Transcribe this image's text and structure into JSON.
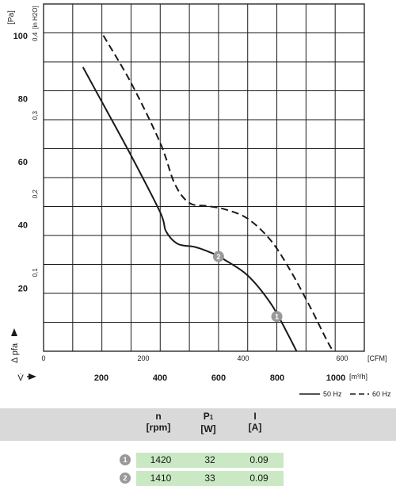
{
  "chart_data": {
    "type": "line",
    "ylabel": "Δ pfa",
    "xlabel": "V̇",
    "y_unit_pa": "[Pa]",
    "y_unit_inh2o": "[in H2O]",
    "x_unit_cfm": "[CFM]",
    "x_unit_m3h": "[m³/h]",
    "ylim": [
      0,
      110
    ],
    "xlim": [
      0,
      1100
    ],
    "y_ticks_pa": [
      20,
      40,
      60,
      80,
      100
    ],
    "y_ticks_inh2o": [
      "0,1",
      "0,2",
      "0,3",
      "0,4"
    ],
    "x_ticks_cfm": [
      "0",
      "200",
      "400",
      "600"
    ],
    "x_ticks_m3h": [
      "200",
      "400",
      "600",
      "800",
      "1000"
    ],
    "grid": true,
    "legend": "bottom-right",
    "series": [
      {
        "name": "50 Hz",
        "line_style": "solid",
        "points": [
          [
            135,
            90
          ],
          [
            200,
            79
          ],
          [
            300,
            62
          ],
          [
            400,
            44
          ],
          [
            420,
            38
          ],
          [
            460,
            34
          ],
          [
            520,
            33
          ],
          [
            580,
            31
          ],
          [
            620,
            29
          ],
          [
            700,
            24
          ],
          [
            780,
            15
          ],
          [
            840,
            5
          ],
          [
            900,
            -6
          ]
        ]
      },
      {
        "name": "60 Hz",
        "line_style": "dashed",
        "points": [
          [
            205,
            100
          ],
          [
            300,
            85
          ],
          [
            400,
            66
          ],
          [
            450,
            53
          ],
          [
            500,
            47
          ],
          [
            560,
            46
          ],
          [
            620,
            45
          ],
          [
            700,
            42
          ],
          [
            780,
            35
          ],
          [
            850,
            25
          ],
          [
            920,
            13
          ],
          [
            980,
            2
          ],
          [
            1030,
            -5
          ]
        ]
      }
    ],
    "operating_points": [
      {
        "label": "1",
        "x": 800,
        "y": 11
      },
      {
        "label": "2",
        "x": 600,
        "y": 30
      }
    ]
  },
  "table": {
    "headers": [
      {
        "main": "n",
        "unit": "[rpm]"
      },
      {
        "main": "P",
        "sub": "1",
        "unit": "[W]"
      },
      {
        "main": "I",
        "unit": "[A]"
      }
    ],
    "rows": [
      {
        "point": "1",
        "n": "1420",
        "p1": "32",
        "i": "0.09"
      },
      {
        "point": "2",
        "n": "1410",
        "p1": "33",
        "i": "0.09"
      }
    ]
  }
}
